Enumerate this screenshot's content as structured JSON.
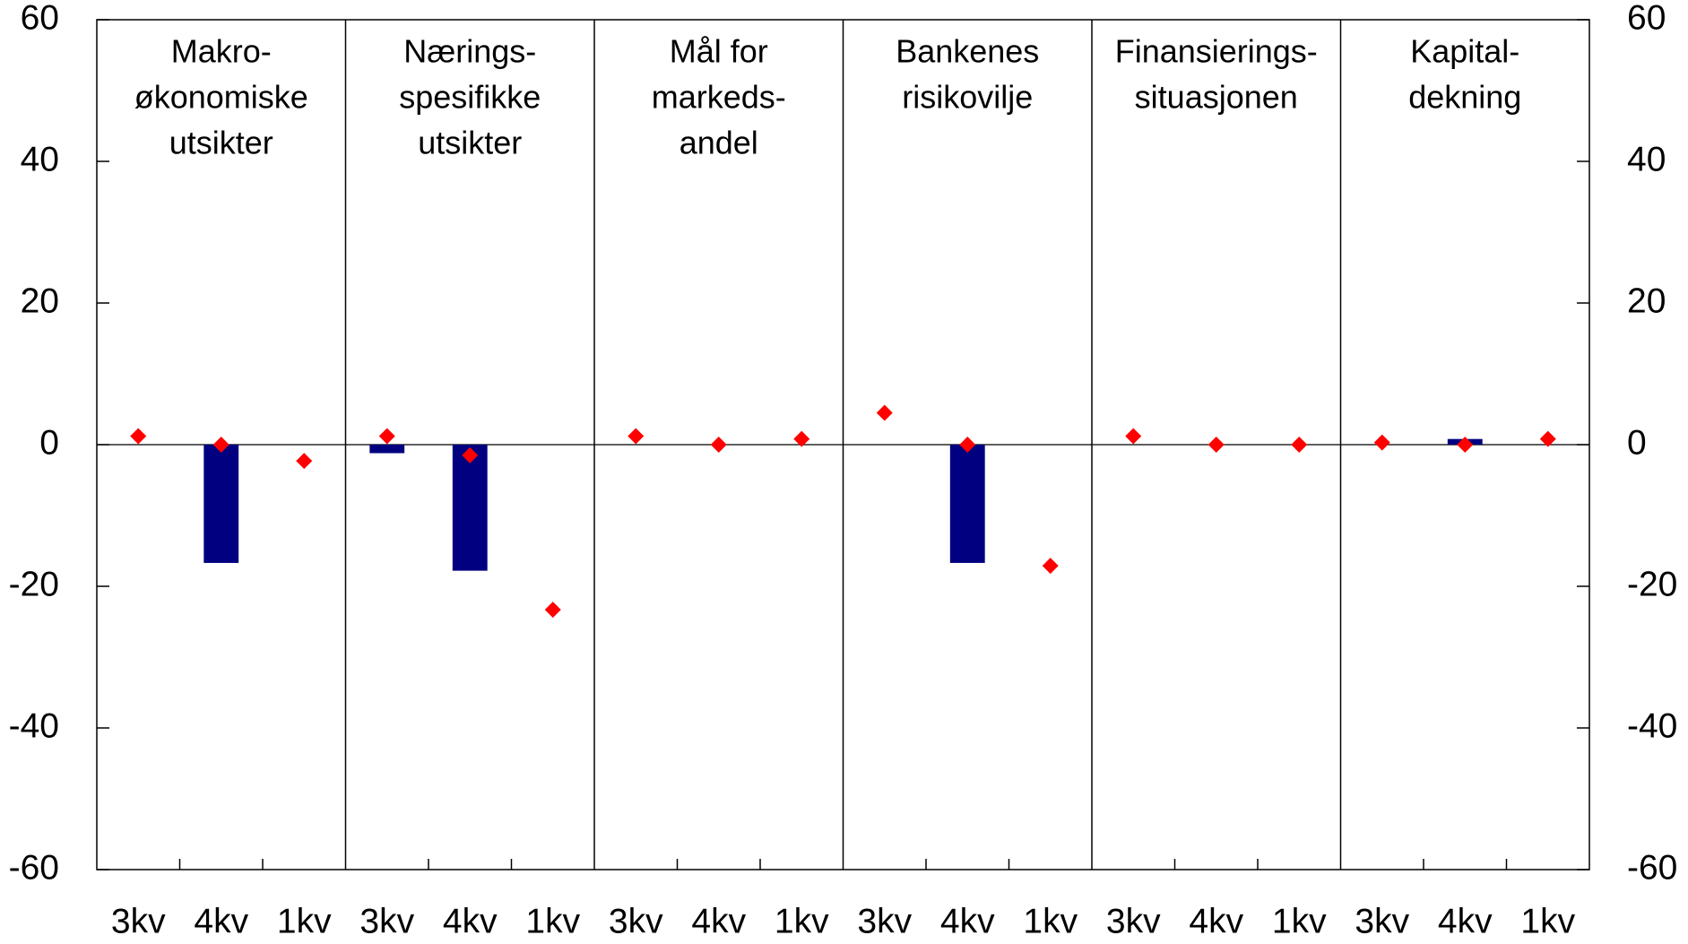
{
  "chart_data": {
    "type": "bar",
    "groups": [
      {
        "lines": [
          "Makro-",
          "økonomiske",
          "utsikter"
        ]
      },
      {
        "lines": [
          "Nærings-",
          "spesifikke",
          "utsikter"
        ]
      },
      {
        "lines": [
          "Mål for",
          "markeds-",
          "andel"
        ]
      },
      {
        "lines": [
          "Bankenes",
          "risikovilje"
        ]
      },
      {
        "lines": [
          "Finansierings-",
          "situasjonen"
        ]
      },
      {
        "lines": [
          "Kapital-",
          "dekning"
        ]
      }
    ],
    "categories": [
      "3kv",
      "4kv",
      "1kv",
      "3kv",
      "4kv",
      "1kv",
      "3kv",
      "4kv",
      "1kv",
      "3kv",
      "4kv",
      "1kv",
      "3kv",
      "4kv",
      "1kv",
      "3kv",
      "4kv",
      "1kv"
    ],
    "series": [
      {
        "type": "bar",
        "color": "#000080",
        "values": [
          0,
          -16.7,
          0,
          -1.2,
          -17.8,
          0,
          0,
          0,
          0,
          0,
          -16.7,
          0,
          0,
          0,
          0,
          0,
          0.8,
          0
        ]
      },
      {
        "type": "scatter",
        "color": "#ff0000",
        "values": [
          1.2,
          0,
          -2.3,
          1.2,
          -1.5,
          -23.3,
          1.2,
          0,
          0.8,
          4.5,
          0,
          -17.1,
          1.2,
          0,
          0,
          0.3,
          0,
          0.8
        ]
      }
    ],
    "ylim": [
      -60,
      60
    ],
    "yticks": [
      -60,
      -40,
      -20,
      0,
      20,
      40,
      60
    ],
    "grid": false
  }
}
